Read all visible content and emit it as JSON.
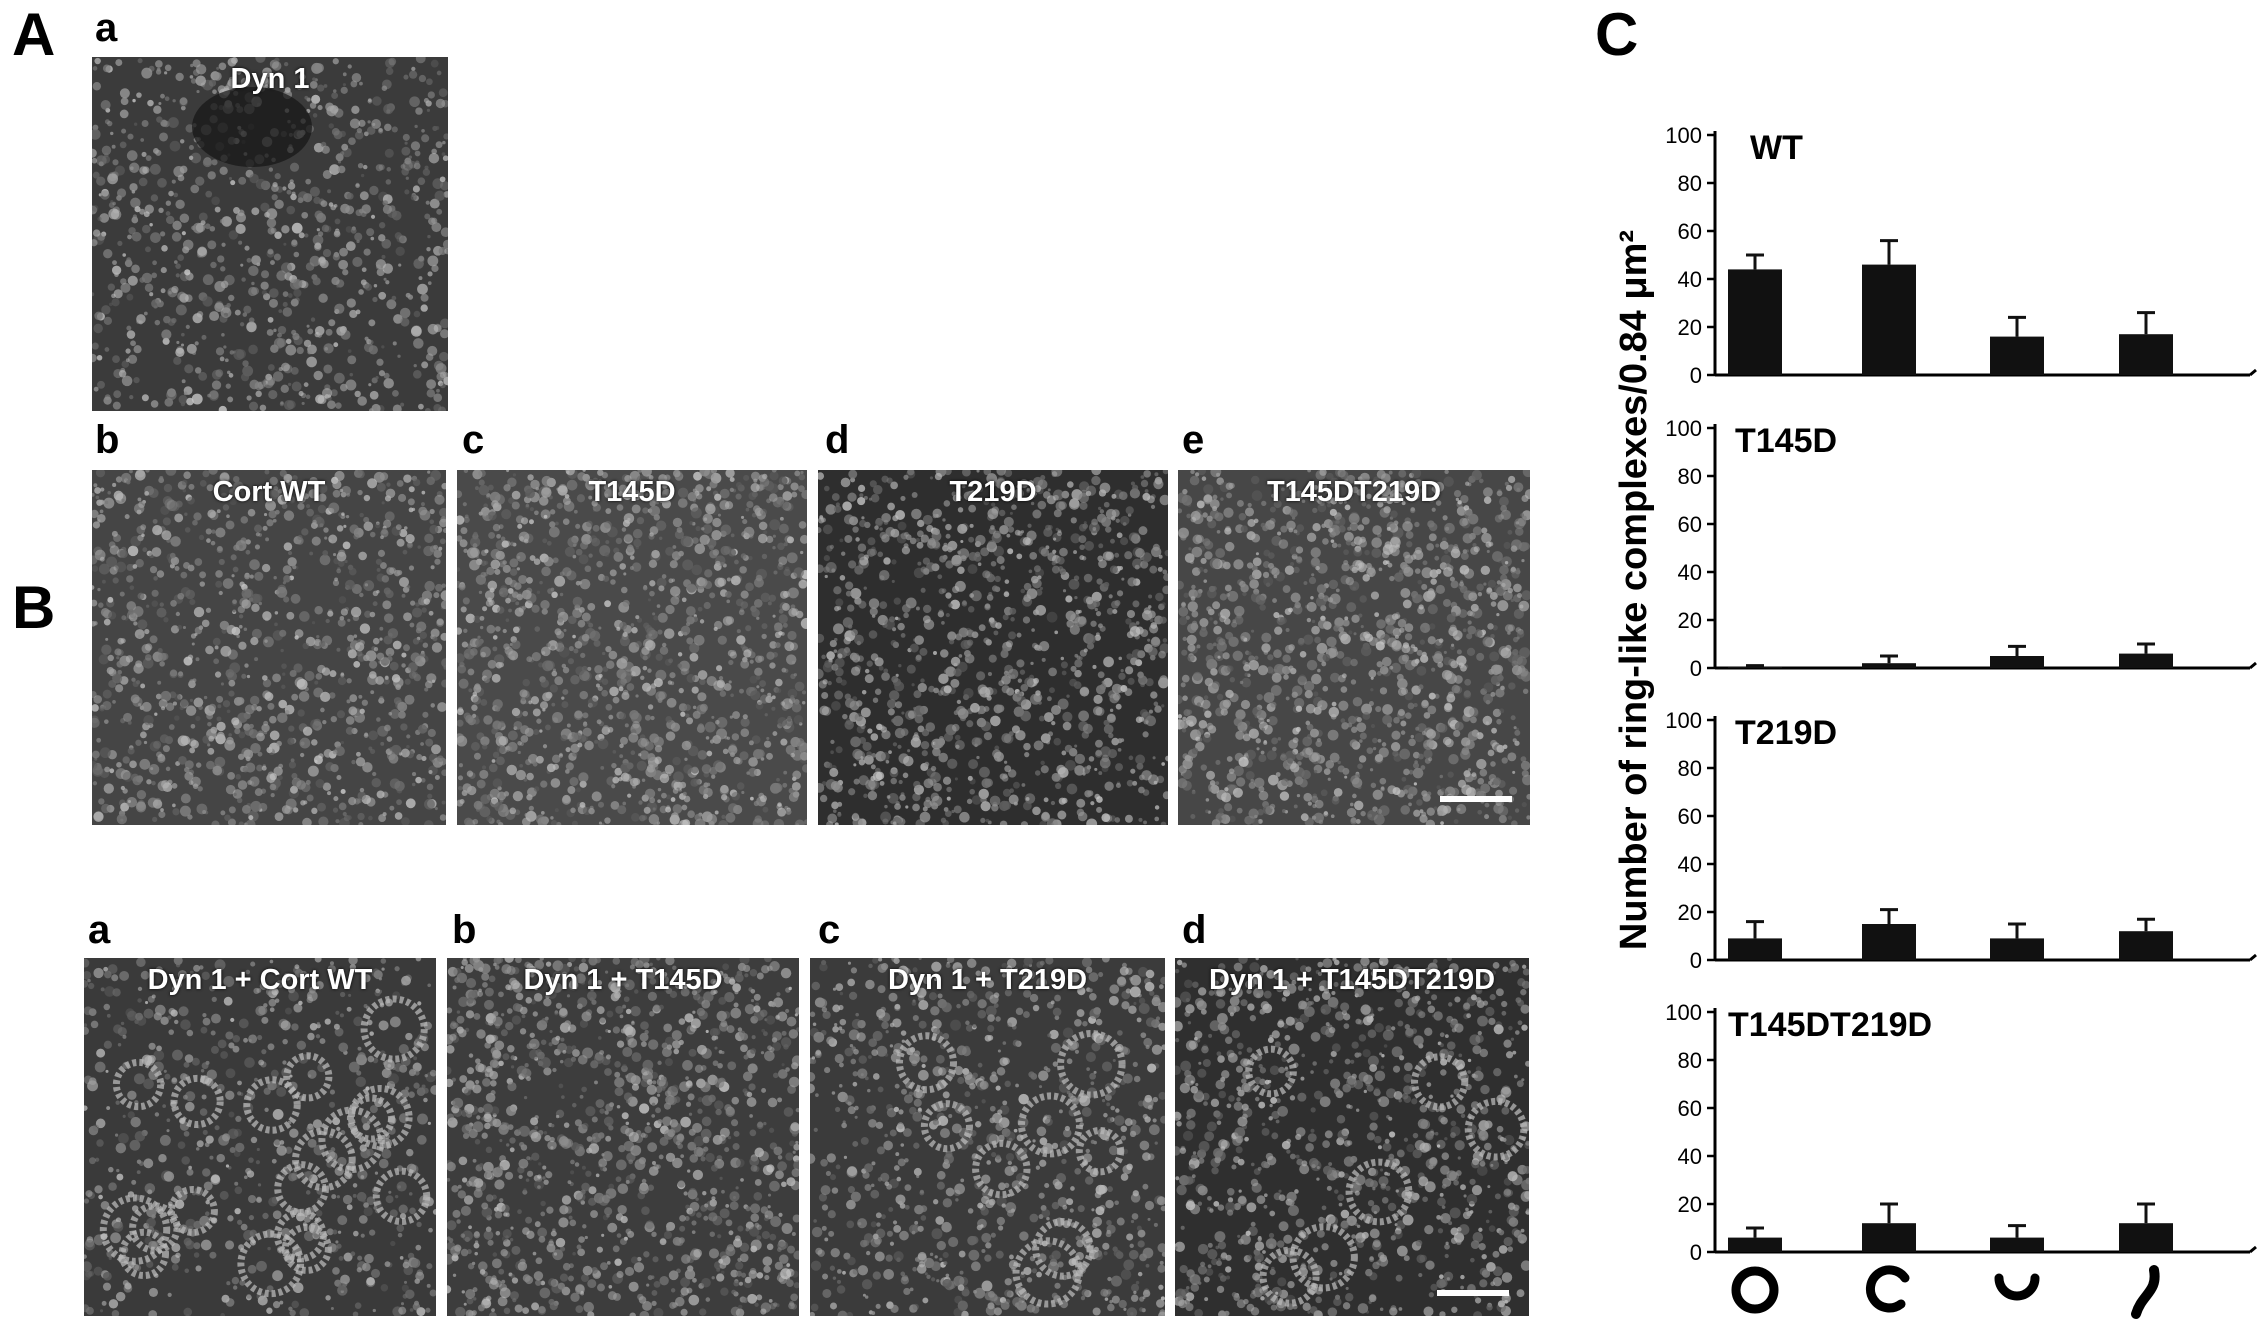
{
  "panels": {
    "A": {
      "letter": "A",
      "subpanels": [
        {
          "letter": "a",
          "label": "Dyn 1"
        },
        {
          "letter": "b",
          "label": "Cort WT"
        },
        {
          "letter": "c",
          "label": "T145D"
        },
        {
          "letter": "d",
          "label": "T219D"
        },
        {
          "letter": "e",
          "label": "T145DT219D"
        }
      ]
    },
    "B": {
      "letter": "B",
      "subpanels": [
        {
          "letter": "a",
          "label": "Dyn 1 + Cort WT"
        },
        {
          "letter": "b",
          "label": "Dyn 1 + T145D"
        },
        {
          "letter": "c",
          "label": "Dyn 1 + T219D"
        },
        {
          "letter": "d",
          "label": "Dyn 1 + T145DT219D"
        }
      ]
    },
    "C": {
      "letter": "C"
    }
  },
  "chart_data": {
    "type": "bar",
    "ylabel": "Number of ring-like complexes/0.84 μm²",
    "categories": [
      "closed-ring-icon",
      "c-shape-icon",
      "u-shape-icon",
      "s-shape-icon"
    ],
    "ylim": [
      0,
      100
    ],
    "yticks": [
      0,
      20,
      40,
      60,
      80,
      100
    ],
    "bar_color": "#111111",
    "series": [
      {
        "name": "WT",
        "values": [
          44,
          46,
          16,
          17
        ],
        "errors": [
          6,
          10,
          8,
          9
        ]
      },
      {
        "name": "T145D",
        "values": [
          0.5,
          2,
          5,
          6
        ],
        "errors": [
          0.5,
          3,
          4,
          4
        ]
      },
      {
        "name": "T219D",
        "values": [
          9,
          15,
          9,
          12
        ],
        "errors": [
          7,
          6,
          6,
          5
        ]
      },
      {
        "name": "T145DT219D",
        "values": [
          6,
          12,
          6,
          12
        ],
        "errors": [
          4,
          8,
          5,
          8
        ]
      }
    ]
  }
}
